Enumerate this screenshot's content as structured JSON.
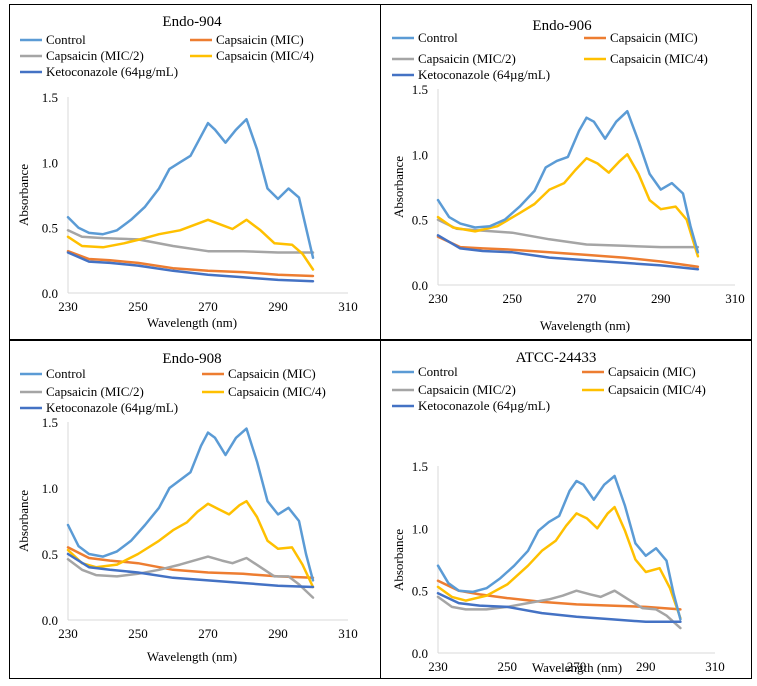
{
  "chart_data": [
    {
      "type": "line",
      "title": "Endo-904",
      "xlabel": "Wavelength (nm)",
      "ylabel": "Absorbance",
      "xlim": [
        230,
        310
      ],
      "ylim": [
        0,
        1.5
      ],
      "xticks": [
        "230",
        "250",
        "270",
        "290",
        "310"
      ],
      "yticks": [
        "0.0",
        "0.5",
        "1.0",
        "1.5"
      ],
      "grid": false,
      "legend": "top",
      "series": [
        {
          "name": "Control",
          "color": "#5b9bd5",
          "x": [
            230,
            233,
            236,
            240,
            244,
            248,
            252,
            256,
            259,
            262,
            265,
            268,
            270,
            272,
            275,
            278,
            281,
            284,
            287,
            290,
            293,
            296,
            298,
            300
          ],
          "y": [
            0.58,
            0.5,
            0.46,
            0.45,
            0.48,
            0.56,
            0.66,
            0.8,
            0.95,
            1.0,
            1.05,
            1.2,
            1.3,
            1.25,
            1.15,
            1.25,
            1.33,
            1.1,
            0.8,
            0.72,
            0.8,
            0.73,
            0.5,
            0.27
          ]
        },
        {
          "name": "Capsaicin (MIC)",
          "color": "#ed7d31",
          "x": [
            230,
            236,
            242,
            250,
            260,
            270,
            280,
            290,
            300
          ],
          "y": [
            0.32,
            0.26,
            0.25,
            0.23,
            0.19,
            0.17,
            0.16,
            0.14,
            0.13
          ]
        },
        {
          "name": "Capsaicin (MIC/2)",
          "color": "#a5a5a5",
          "x": [
            230,
            234,
            240,
            250,
            260,
            270,
            280,
            290,
            300
          ],
          "y": [
            0.48,
            0.43,
            0.42,
            0.41,
            0.36,
            0.32,
            0.32,
            0.31,
            0.31
          ]
        },
        {
          "name": "Capsaicin (MIC/4)",
          "color": "#ffc000",
          "x": [
            230,
            234,
            240,
            246,
            252,
            256,
            262,
            266,
            270,
            274,
            277,
            281,
            285,
            289,
            294,
            297,
            300
          ],
          "y": [
            0.43,
            0.36,
            0.35,
            0.38,
            0.42,
            0.45,
            0.48,
            0.52,
            0.56,
            0.52,
            0.49,
            0.56,
            0.48,
            0.38,
            0.37,
            0.3,
            0.18
          ]
        },
        {
          "name": "Ketoconazole (64µg/mL)",
          "color": "#4472c4",
          "x": [
            230,
            236,
            242,
            250,
            260,
            270,
            280,
            290,
            300
          ],
          "y": [
            0.31,
            0.24,
            0.23,
            0.21,
            0.17,
            0.14,
            0.12,
            0.1,
            0.09
          ]
        }
      ]
    },
    {
      "type": "line",
      "title": "Endo-906",
      "xlabel": "Wavelength (nm)",
      "ylabel": "Absorbance",
      "xlim": [
        230,
        310
      ],
      "ylim": [
        0,
        1.5
      ],
      "xticks": [
        "230",
        "250",
        "270",
        "290",
        "310"
      ],
      "yticks": [
        "0.0",
        "0.5",
        "1.0",
        "1.5"
      ],
      "grid": false,
      "legend": "top",
      "series": [
        {
          "name": "Control",
          "color": "#5b9bd5",
          "x": [
            230,
            233,
            236,
            240,
            244,
            248,
            252,
            256,
            259,
            262,
            265,
            268,
            270,
            272,
            275,
            278,
            281,
            284,
            287,
            290,
            293,
            296,
            298,
            300
          ],
          "y": [
            0.65,
            0.52,
            0.47,
            0.44,
            0.45,
            0.5,
            0.6,
            0.72,
            0.9,
            0.95,
            0.98,
            1.18,
            1.28,
            1.25,
            1.12,
            1.25,
            1.33,
            1.1,
            0.85,
            0.73,
            0.78,
            0.7,
            0.45,
            0.25
          ]
        },
        {
          "name": "Capsaicin (MIC)",
          "color": "#ed7d31",
          "x": [
            230,
            236,
            242,
            250,
            260,
            270,
            280,
            290,
            300
          ],
          "y": [
            0.37,
            0.29,
            0.28,
            0.27,
            0.25,
            0.23,
            0.21,
            0.18,
            0.14
          ]
        },
        {
          "name": "Capsaicin (MIC/2)",
          "color": "#a5a5a5",
          "x": [
            230,
            235,
            240,
            250,
            260,
            270,
            280,
            290,
            300
          ],
          "y": [
            0.5,
            0.43,
            0.42,
            0.4,
            0.35,
            0.31,
            0.3,
            0.29,
            0.29
          ]
        },
        {
          "name": "Capsaicin (MIC/4)",
          "color": "#ffc000",
          "x": [
            230,
            234,
            240,
            246,
            252,
            256,
            260,
            264,
            267,
            270,
            273,
            276,
            279,
            281,
            284,
            287,
            290,
            294,
            297,
            300
          ],
          "y": [
            0.52,
            0.44,
            0.41,
            0.45,
            0.55,
            0.62,
            0.73,
            0.78,
            0.88,
            0.97,
            0.93,
            0.86,
            0.95,
            1.0,
            0.85,
            0.65,
            0.58,
            0.6,
            0.5,
            0.22
          ]
        },
        {
          "name": "Ketoconazole (64µg/mL)",
          "color": "#4472c4",
          "x": [
            230,
            236,
            242,
            250,
            260,
            270,
            280,
            290,
            300
          ],
          "y": [
            0.38,
            0.28,
            0.26,
            0.25,
            0.21,
            0.19,
            0.17,
            0.15,
            0.12
          ]
        }
      ]
    },
    {
      "type": "line",
      "title": "Endo-908",
      "xlabel": "Wavelength (nm)",
      "ylabel": "Absorbance",
      "xlim": [
        230,
        310
      ],
      "ylim": [
        0,
        1.5
      ],
      "xticks": [
        "230",
        "250",
        "270",
        "290",
        "310"
      ],
      "yticks": [
        "0.0",
        "0.5",
        "1.0",
        "1.5"
      ],
      "grid": false,
      "legend": "top",
      "series": [
        {
          "name": "Control",
          "color": "#5b9bd5",
          "x": [
            230,
            233,
            236,
            240,
            244,
            248,
            252,
            256,
            259,
            262,
            265,
            268,
            270,
            272,
            275,
            278,
            281,
            284,
            287,
            290,
            293,
            296,
            298,
            300
          ],
          "y": [
            0.72,
            0.56,
            0.5,
            0.48,
            0.52,
            0.6,
            0.72,
            0.85,
            1.0,
            1.06,
            1.12,
            1.32,
            1.42,
            1.38,
            1.25,
            1.38,
            1.45,
            1.2,
            0.9,
            0.8,
            0.85,
            0.75,
            0.5,
            0.3
          ]
        },
        {
          "name": "Capsaicin (MIC)",
          "color": "#ed7d31",
          "x": [
            230,
            236,
            242,
            250,
            260,
            270,
            280,
            290,
            300
          ],
          "y": [
            0.55,
            0.47,
            0.45,
            0.43,
            0.38,
            0.36,
            0.35,
            0.33,
            0.32
          ]
        },
        {
          "name": "Capsaicin (MIC/2)",
          "color": "#a5a5a5",
          "x": [
            230,
            234,
            238,
            244,
            250,
            256,
            262,
            266,
            270,
            274,
            277,
            281,
            285,
            289,
            293,
            296,
            300
          ],
          "y": [
            0.46,
            0.38,
            0.34,
            0.33,
            0.35,
            0.38,
            0.42,
            0.45,
            0.48,
            0.45,
            0.43,
            0.47,
            0.4,
            0.33,
            0.33,
            0.27,
            0.17
          ]
        },
        {
          "name": "Capsaicin (MIC/4)",
          "color": "#ffc000",
          "x": [
            230,
            234,
            238,
            244,
            250,
            256,
            260,
            264,
            267,
            270,
            273,
            276,
            279,
            281,
            284,
            287,
            290,
            294,
            297,
            300
          ],
          "y": [
            0.53,
            0.43,
            0.4,
            0.42,
            0.5,
            0.6,
            0.68,
            0.74,
            0.82,
            0.88,
            0.84,
            0.8,
            0.87,
            0.9,
            0.78,
            0.6,
            0.54,
            0.55,
            0.42,
            0.25
          ]
        },
        {
          "name": "Ketoconazole (64µg/mL)",
          "color": "#4472c4",
          "x": [
            230,
            236,
            242,
            250,
            260,
            270,
            280,
            290,
            300
          ],
          "y": [
            0.5,
            0.4,
            0.38,
            0.36,
            0.32,
            0.3,
            0.28,
            0.26,
            0.25
          ]
        }
      ]
    },
    {
      "type": "line",
      "title": "ATCC-24433",
      "xlabel": "Wavelength (nm)",
      "ylabel": "Absorbance",
      "xlim": [
        230,
        310
      ],
      "ylim": [
        0,
        1.5
      ],
      "xticks": [
        "230",
        "250",
        "270",
        "290",
        "310"
      ],
      "yticks": [
        "0.0",
        "0.5",
        "1.0",
        "1.5"
      ],
      "grid": false,
      "legend": "top",
      "series": [
        {
          "name": "Control",
          "color": "#5b9bd5",
          "x": [
            230,
            233,
            236,
            240,
            244,
            248,
            252,
            256,
            259,
            262,
            265,
            268,
            270,
            272,
            275,
            278,
            281,
            284,
            287,
            290,
            293,
            296,
            298,
            300
          ],
          "y": [
            0.7,
            0.56,
            0.5,
            0.49,
            0.52,
            0.6,
            0.7,
            0.82,
            0.98,
            1.05,
            1.1,
            1.3,
            1.38,
            1.35,
            1.23,
            1.35,
            1.42,
            1.18,
            0.88,
            0.78,
            0.84,
            0.74,
            0.48,
            0.27
          ]
        },
        {
          "name": "Capsaicin (MIC)",
          "color": "#ed7d31",
          "x": [
            230,
            236,
            242,
            250,
            260,
            270,
            280,
            290,
            300
          ],
          "y": [
            0.58,
            0.5,
            0.47,
            0.44,
            0.41,
            0.39,
            0.38,
            0.37,
            0.35
          ]
        },
        {
          "name": "Capsaicin (MIC/2)",
          "color": "#a5a5a5",
          "x": [
            230,
            234,
            238,
            244,
            250,
            256,
            262,
            266,
            270,
            274,
            277,
            281,
            285,
            289,
            293,
            296,
            300
          ],
          "y": [
            0.45,
            0.37,
            0.35,
            0.35,
            0.37,
            0.4,
            0.43,
            0.46,
            0.5,
            0.47,
            0.45,
            0.5,
            0.43,
            0.36,
            0.35,
            0.3,
            0.2
          ]
        },
        {
          "name": "Capsaicin (MIC/4)",
          "color": "#ffc000",
          "x": [
            230,
            234,
            238,
            244,
            250,
            256,
            260,
            264,
            267,
            270,
            273,
            276,
            279,
            281,
            284,
            287,
            290,
            294,
            297,
            300
          ],
          "y": [
            0.53,
            0.45,
            0.42,
            0.46,
            0.55,
            0.7,
            0.82,
            0.9,
            1.02,
            1.12,
            1.08,
            1.0,
            1.12,
            1.17,
            0.98,
            0.75,
            0.65,
            0.68,
            0.52,
            0.28
          ]
        },
        {
          "name": "Ketoconazole (64µg/mL)",
          "color": "#4472c4",
          "x": [
            230,
            236,
            242,
            250,
            260,
            270,
            280,
            290,
            300
          ],
          "y": [
            0.48,
            0.4,
            0.38,
            0.37,
            0.32,
            0.29,
            0.27,
            0.25,
            0.25
          ]
        }
      ]
    }
  ]
}
